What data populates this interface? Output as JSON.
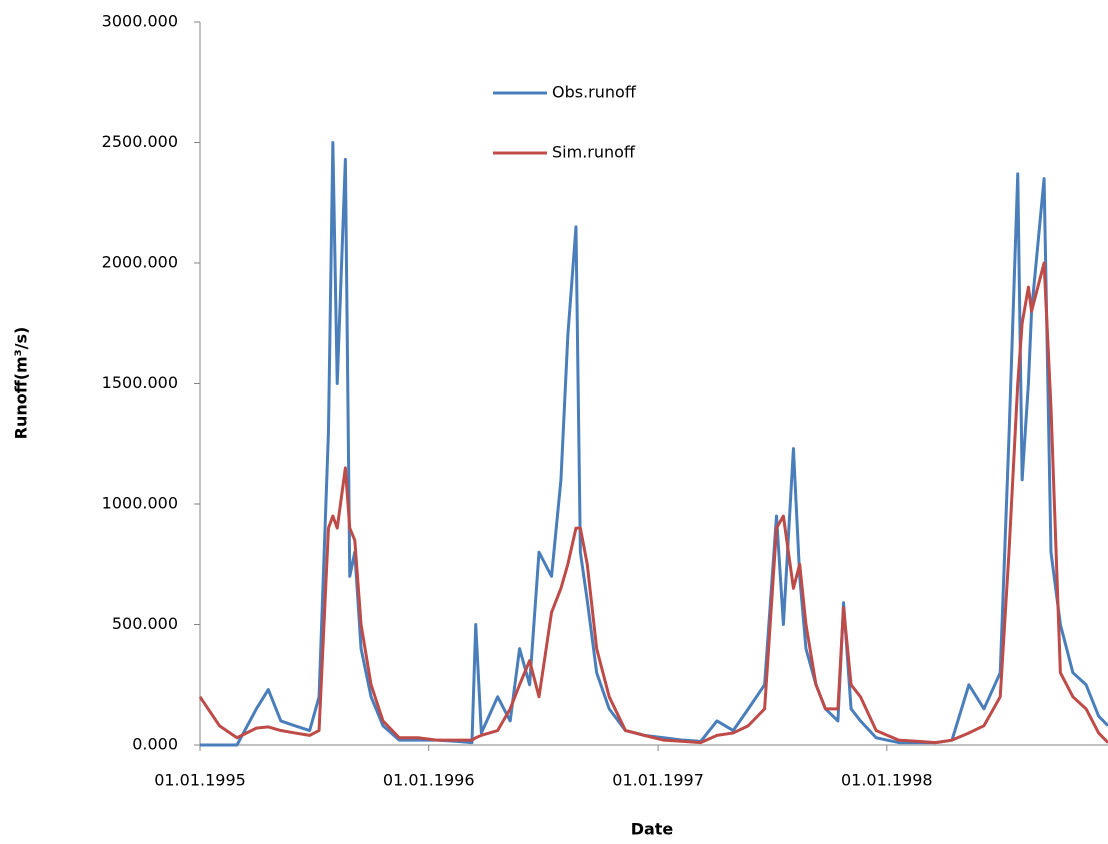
{
  "chart_data": {
    "type": "line",
    "x_label": "Date",
    "y_label": "Runoff(m³/s)",
    "x": [
      "1995-01-01",
      "1995-02-01",
      "1995-03-01",
      "1995-04-01",
      "1995-04-20",
      "1995-05-10",
      "1995-06-01",
      "1995-06-25",
      "1995-07-10",
      "1995-07-25",
      "1995-08-01",
      "1995-08-08",
      "1995-08-21",
      "1995-08-28",
      "1995-09-05",
      "1995-09-15",
      "1995-10-01",
      "1995-10-20",
      "1995-11-15",
      "1995-12-15",
      "1996-01-15",
      "1996-02-15",
      "1996-03-10",
      "1996-03-16",
      "1996-03-25",
      "1996-04-20",
      "1996-05-10",
      "1996-05-25",
      "1996-06-10",
      "1996-06-25",
      "1996-07-15",
      "1996-07-30",
      "1996-08-10",
      "1996-08-23",
      "1996-08-30",
      "1996-09-10",
      "1996-09-25",
      "1996-10-15",
      "1996-11-10",
      "1996-12-10",
      "1997-01-10",
      "1997-02-10",
      "1997-03-10",
      "1997-04-05",
      "1997-05-01",
      "1997-05-25",
      "1997-06-20",
      "1997-07-09",
      "1997-07-20",
      "1997-08-05",
      "1997-08-15",
      "1997-08-25",
      "1997-09-10",
      "1997-09-25",
      "1997-10-15",
      "1997-10-24",
      "1997-11-05",
      "1997-11-20",
      "1997-12-15",
      "1998-01-20",
      "1998-02-20",
      "1998-03-20",
      "1998-04-15",
      "1998-05-12",
      "1998-06-05",
      "1998-07-01",
      "1998-07-15",
      "1998-07-29",
      "1998-08-05",
      "1998-08-15",
      "1998-08-20",
      "1998-09-09",
      "1998-09-20",
      "1998-10-05",
      "1998-10-25",
      "1998-11-15",
      "1998-12-05",
      "1998-12-20"
    ],
    "series": [
      {
        "name": "Obs.runoff",
        "color": "#4a7ebb",
        "values": [
          0,
          0,
          0,
          150,
          230,
          100,
          80,
          60,
          200,
          1300,
          2500,
          1500,
          2430,
          700,
          800,
          400,
          200,
          80,
          20,
          20,
          20,
          15,
          10,
          500,
          50,
          200,
          100,
          400,
          250,
          800,
          700,
          1100,
          1700,
          2150,
          800,
          600,
          300,
          150,
          60,
          40,
          30,
          20,
          15,
          100,
          60,
          150,
          250,
          950,
          500,
          1230,
          700,
          400,
          250,
          150,
          100,
          590,
          150,
          100,
          30,
          10,
          10,
          10,
          20,
          250,
          150,
          300,
          1280,
          2370,
          1100,
          1500,
          1800,
          2350,
          800,
          500,
          300,
          250,
          120,
          80
        ]
      },
      {
        "name": "Sim.runoff",
        "color": "#be4b48",
        "values": [
          200,
          80,
          30,
          70,
          75,
          60,
          50,
          40,
          60,
          900,
          950,
          900,
          1150,
          900,
          850,
          500,
          250,
          100,
          30,
          30,
          20,
          20,
          20,
          30,
          40,
          60,
          150,
          250,
          350,
          200,
          550,
          650,
          750,
          900,
          900,
          750,
          400,
          200,
          60,
          40,
          20,
          15,
          10,
          40,
          50,
          80,
          150,
          900,
          950,
          650,
          750,
          500,
          250,
          150,
          150,
          570,
          250,
          200,
          60,
          20,
          15,
          10,
          20,
          50,
          80,
          200,
          800,
          1500,
          1750,
          1900,
          1800,
          2000,
          1400,
          300,
          200,
          150,
          50,
          10
        ]
      }
    ],
    "xlim": [
      "1995-01-01",
      "1998-12-20"
    ],
    "xticks": [
      {
        "value": "1995-01-01",
        "label": "01.01.1995"
      },
      {
        "value": "1996-01-01",
        "label": "01.01.1996"
      },
      {
        "value": "1997-01-01",
        "label": "01.01.1997"
      },
      {
        "value": "1998-01-01",
        "label": "01.01.1998"
      }
    ],
    "ylim": [
      0,
      3000
    ],
    "yticks": [
      {
        "value": 0,
        "label": "0.000"
      },
      {
        "value": 500,
        "label": "500.000"
      },
      {
        "value": 1000,
        "label": "1000.000"
      },
      {
        "value": 1500,
        "label": "1500.000"
      },
      {
        "value": 2000,
        "label": "2000.000"
      },
      {
        "value": 2500,
        "label": "2500.000"
      },
      {
        "value": 3000,
        "label": "3000.000"
      }
    ],
    "grid": false,
    "legend": "top"
  }
}
